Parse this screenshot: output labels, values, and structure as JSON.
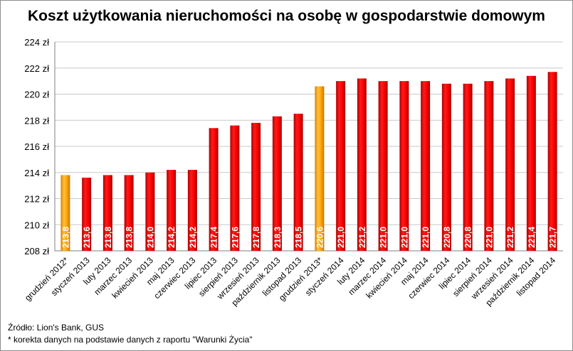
{
  "chart_data": {
    "type": "bar",
    "title": "Koszt użytkowania nieruchomości na osobę w gospodarstwie domowym",
    "categories": [
      "grudzień 2012*",
      "styczeń 2013",
      "luty 2013",
      "marzec 2013",
      "kwiecień 2013",
      "maj 2013",
      "czerwiec 2013",
      "lipiec 2013",
      "sierpień 2013",
      "wrzesień 2013",
      "październik 2013",
      "listopad 2013",
      "grudzień 2013*",
      "styczeń 2014",
      "luty 2014",
      "marzec 2014",
      "kwiecień 2014",
      "maj 2014",
      "czerwiec 2014",
      "lipiec 2014",
      "sierpień 2014",
      "wrzesień 2014",
      "październik 2014",
      "listopad 2014"
    ],
    "values": [
      213.8,
      213.6,
      213.8,
      213.8,
      214.0,
      214.2,
      214.2,
      217.4,
      217.6,
      217.8,
      218.3,
      218.5,
      220.6,
      221.0,
      221.2,
      221.0,
      221.0,
      221.0,
      220.8,
      220.8,
      221.0,
      221.2,
      221.4,
      221.7
    ],
    "data_labels": [
      "213,8",
      "213,6",
      "213,8",
      "213,8",
      "214,0",
      "214,2",
      "214,2",
      "217,4",
      "217,6",
      "217,8",
      "218,3",
      "218,5",
      "220,6",
      "221,0",
      "221,2",
      "221,0",
      "221,0",
      "221,0",
      "220,8",
      "220,8",
      "221,0",
      "221,2",
      "221,4",
      "221,7"
    ],
    "highlighted": [
      0,
      12
    ],
    "ylim": [
      208,
      224
    ],
    "yticks": [
      208,
      210,
      212,
      214,
      216,
      218,
      220,
      222,
      224
    ],
    "ytick_labels": [
      "208 zł",
      "210 zł",
      "212 zł",
      "214 zł",
      "216 zł",
      "218 zł",
      "220 zł",
      "222 zł",
      "224 zł"
    ],
    "grid": true,
    "legend": "none",
    "colors": {
      "bar": "#ff0000",
      "highlight": "#ffa500",
      "grid": "#c8c8c8",
      "label": "#ffffff"
    },
    "source": "Źródło: Lion's Bank, GUS",
    "footnote": "* korekta danych na podstawie danych z raportu \"Warunki Życia\""
  }
}
